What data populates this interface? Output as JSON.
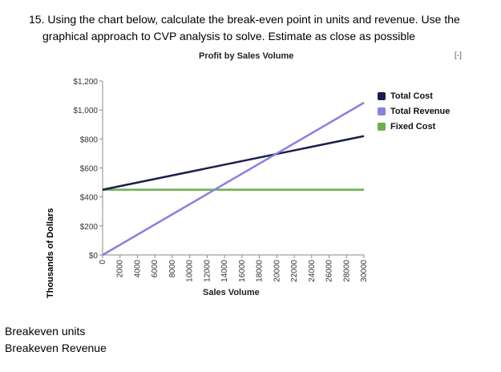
{
  "question": {
    "line1": "15. Using the chart below, calculate the break-even point in units and revenue. Use the",
    "line2": "graphical approach to CVP analysis to solve. Estimate as close as possible"
  },
  "collapse_label": "[-]",
  "answers": {
    "units_label": "Breakeven units",
    "revenue_label": "Breakeven Revenue"
  },
  "chart_data": {
    "type": "line",
    "title": "Profit by Sales Volume",
    "xlabel": "Sales Volume",
    "ylabel": "Thousands of Dollars",
    "xlim": [
      0,
      30000
    ],
    "ylim": [
      0,
      1200
    ],
    "x_ticks": [
      0,
      2000,
      4000,
      6000,
      8000,
      10000,
      12000,
      14000,
      16000,
      18000,
      20000,
      22000,
      24000,
      26000,
      28000,
      30000
    ],
    "x_tick_labels": [
      "0",
      "2000",
      "4000",
      "6000",
      "8000",
      "10000",
      "12000",
      "14000",
      "16000",
      "18000",
      "20000",
      "22000",
      "24000",
      "26000",
      "28000",
      "30000"
    ],
    "y_ticks": [
      0,
      200,
      400,
      600,
      800,
      1000,
      1200
    ],
    "y_tick_labels": [
      "$0",
      "$200",
      "$400",
      "$600",
      "$800",
      "$1,000",
      "$1,200"
    ],
    "grid": false,
    "legend_position": "right",
    "series": [
      {
        "name": "Total Cost",
        "color": "#1a1f4e",
        "x": [
          0,
          30000
        ],
        "y": [
          450,
          820
        ]
      },
      {
        "name": "Total Revenue",
        "color": "#8a7fe0",
        "x": [
          0,
          30000
        ],
        "y": [
          0,
          1050
        ]
      },
      {
        "name": "Fixed Cost",
        "color": "#6ab04c",
        "x": [
          0,
          30000
        ],
        "y": [
          450,
          450
        ]
      }
    ]
  }
}
